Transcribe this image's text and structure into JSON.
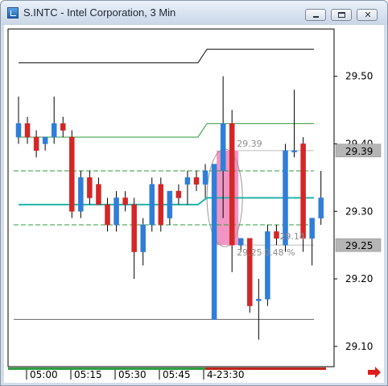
{
  "window": {
    "title": "S.INTC - Intel Corporation, 3 Min",
    "minimize_icon": "minimize-icon",
    "maximize_icon": "maximize-icon",
    "close_icon": "close-icon"
  },
  "colors": {
    "up": "#2f7ed8",
    "down": "#d42626",
    "average": "#20b2aa",
    "band": "#2e9b3a",
    "highlight": "#ee82b8",
    "price_label_bg": "#b5b5b5"
  },
  "chart_data": {
    "type": "candlestick",
    "ylim": [
      29.07,
      29.57
    ],
    "y_ticks": [
      "29.50",
      "29.40",
      "29.30",
      "29.20",
      "29.10"
    ],
    "x_ticks": [
      "05:00",
      "05:15",
      "05:30",
      "05:45",
      "4-23:30"
    ],
    "price_labels": [
      "29.39",
      "29.25"
    ],
    "candles": [
      {
        "o": 29.41,
        "h": 29.47,
        "l": 29.4,
        "c": 29.43
      },
      {
        "o": 29.43,
        "h": 29.44,
        "l": 29.4,
        "c": 29.41
      },
      {
        "o": 29.41,
        "h": 29.42,
        "l": 29.38,
        "c": 29.39
      },
      {
        "o": 29.4,
        "h": 29.41,
        "l": 29.39,
        "c": 29.41
      },
      {
        "o": 29.41,
        "h": 29.47,
        "l": 29.4,
        "c": 29.43
      },
      {
        "o": 29.43,
        "h": 29.44,
        "l": 29.41,
        "c": 29.42
      },
      {
        "o": 29.41,
        "h": 29.42,
        "l": 29.29,
        "c": 29.3
      },
      {
        "o": 29.3,
        "h": 29.36,
        "l": 29.29,
        "c": 29.35
      },
      {
        "o": 29.35,
        "h": 29.36,
        "l": 29.31,
        "c": 29.32
      },
      {
        "o": 29.34,
        "h": 29.35,
        "l": 29.31,
        "c": 29.31
      },
      {
        "o": 29.31,
        "h": 29.32,
        "l": 29.27,
        "c": 29.28
      },
      {
        "o": 29.28,
        "h": 29.33,
        "l": 29.27,
        "c": 29.32
      },
      {
        "o": 29.32,
        "h": 29.33,
        "l": 29.3,
        "c": 29.31
      },
      {
        "o": 29.31,
        "h": 29.32,
        "l": 29.2,
        "c": 29.24
      },
      {
        "o": 29.24,
        "h": 29.29,
        "l": 29.22,
        "c": 29.28
      },
      {
        "o": 29.28,
        "h": 29.35,
        "l": 29.27,
        "c": 29.34
      },
      {
        "o": 29.34,
        "h": 29.35,
        "l": 29.27,
        "c": 29.28
      },
      {
        "o": 29.29,
        "h": 29.33,
        "l": 29.28,
        "c": 29.33
      },
      {
        "o": 29.33,
        "h": 29.34,
        "l": 29.31,
        "c": 29.32
      },
      {
        "o": 29.34,
        "h": 29.36,
        "l": 29.31,
        "c": 29.35
      },
      {
        "o": 29.35,
        "h": 29.36,
        "l": 29.33,
        "c": 29.34
      },
      {
        "o": 29.34,
        "h": 29.37,
        "l": 29.32,
        "c": 29.36
      },
      {
        "o": 29.14,
        "h": 29.37,
        "l": 29.14,
        "c": 29.37
      },
      {
        "o": 29.36,
        "h": 29.5,
        "l": 29.29,
        "c": 29.43
      },
      {
        "o": 29.43,
        "h": 29.45,
        "l": 29.21,
        "c": 29.25
      },
      {
        "o": 29.25,
        "h": 29.26,
        "l": 29.24,
        "c": 29.26
      },
      {
        "o": 29.26,
        "h": 29.26,
        "l": 29.15,
        "c": 29.16
      },
      {
        "o": 29.17,
        "h": 29.2,
        "l": 29.11,
        "c": 29.17
      },
      {
        "o": 29.17,
        "h": 29.28,
        "l": 29.16,
        "c": 29.27
      },
      {
        "o": 29.27,
        "h": 29.28,
        "l": 29.25,
        "c": 29.26
      },
      {
        "o": 29.25,
        "h": 29.4,
        "l": 29.24,
        "c": 29.39
      },
      {
        "o": 29.39,
        "h": 29.48,
        "l": 29.38,
        "c": 29.39
      },
      {
        "o": 29.4,
        "h": 29.41,
        "l": 29.24,
        "c": 29.26
      },
      {
        "o": 29.26,
        "h": 29.29,
        "l": 29.22,
        "c": 29.29
      },
      {
        "o": 29.29,
        "h": 29.36,
        "l": 29.28,
        "c": 29.32
      }
    ],
    "lines": {
      "upper_envelope": [
        {
          "from": 0,
          "to": 20,
          "y": 29.52
        },
        {
          "from": 21,
          "to": 34,
          "y": 29.54
        }
      ],
      "upper_band": [
        {
          "from": 0,
          "to": 20,
          "y": 29.41
        },
        {
          "from": 21,
          "to": 34,
          "y": 29.43
        }
      ],
      "upper_dash": 29.36,
      "average": [
        {
          "from": 0,
          "to": 20,
          "y": 29.31
        },
        {
          "from": 21,
          "to": 34,
          "y": 29.32
        }
      ],
      "lower_dash": 29.28,
      "lower_band": 29.14
    },
    "annotations": {
      "high_label": "29.39",
      "low_label": "29.25",
      "percent_label": "0.48 %",
      "mini_label": "29.14"
    }
  }
}
